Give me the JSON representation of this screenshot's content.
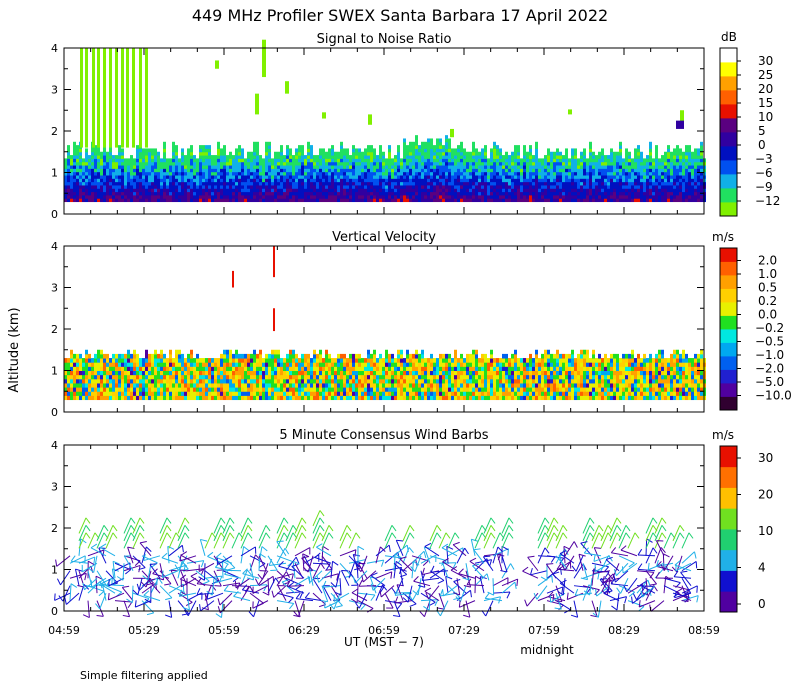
{
  "title": "449 MHz Profiler SWEX Santa Barbara 17 April 2022",
  "ylabel": "Altitude (km)",
  "xlabel": "UT  (MST − 7)",
  "midnight_label": "midnight",
  "footer_note": "Simple filtering applied",
  "x_ticks": [
    "04:59",
    "05:29",
    "05:59",
    "06:29",
    "06:59",
    "07:29",
    "07:59",
    "08:29",
    "08:59"
  ],
  "y_ticks": [
    "0",
    "1",
    "2",
    "3",
    "4"
  ],
  "colors": {
    "snr": [
      "#80f000",
      "#20e060",
      "#10b0e8",
      "#0050f0",
      "#0010c0",
      "#3000a0",
      "#5a0080",
      "#e81000",
      "#ff6000",
      "#ffa000",
      "#ffff00",
      "#ffffff"
    ],
    "velocity": [
      "#300030",
      "#5000a0",
      "#2020d0",
      "#0060f0",
      "#00a8f0",
      "#00e8e0",
      "#20e020",
      "#e8f000",
      "#ffd000",
      "#ffa000",
      "#ff6000",
      "#e81000"
    ],
    "wind": [
      "#5000a0",
      "#1010d0",
      "#20b0e8",
      "#20d070",
      "#70e020",
      "#ffc000",
      "#ff7000",
      "#e81000"
    ]
  },
  "chart_data": [
    {
      "type": "heatmap",
      "title": "Signal to Noise Ratio",
      "unit": "dB",
      "ylabel": "Altitude (km)",
      "ylim": [
        0,
        4
      ],
      "x_range": [
        "04:59",
        "08:59"
      ],
      "colorbar_labels": [
        "30",
        "25",
        "20",
        "15",
        "10",
        "5",
        "0",
        "−3",
        "−6",
        "−9",
        "−12"
      ],
      "colorbar_levels": [
        -12,
        -9,
        -6,
        -3,
        0,
        5,
        10,
        15,
        20,
        25,
        30
      ]
    },
    {
      "type": "heatmap",
      "title": "Vertical Velocity",
      "unit": "m/s",
      "ylabel": "Altitude (km)",
      "ylim": [
        0,
        4
      ],
      "x_range": [
        "04:59",
        "08:59"
      ],
      "colorbar_labels": [
        "2.0",
        "1.0",
        "0.5",
        "0.2",
        "0.0",
        "−0.2",
        "−0.5",
        "−1.0",
        "−2.0",
        "−5.0",
        "−10.0"
      ],
      "colorbar_levels": [
        -10,
        -5,
        -2,
        -1,
        -0.5,
        -0.2,
        0,
        0.2,
        0.5,
        1,
        2
      ]
    },
    {
      "type": "scatter",
      "title": "5 Minute Consensus Wind Barbs",
      "unit": "m/s",
      "ylabel": "Altitude (km)",
      "ylim": [
        0,
        4
      ],
      "x_range": [
        "04:59",
        "08:59"
      ],
      "colorbar_labels": [
        "30",
        "20",
        "10",
        "4",
        "0"
      ],
      "colorbar_levels": [
        0,
        4,
        10,
        20,
        30
      ]
    }
  ]
}
